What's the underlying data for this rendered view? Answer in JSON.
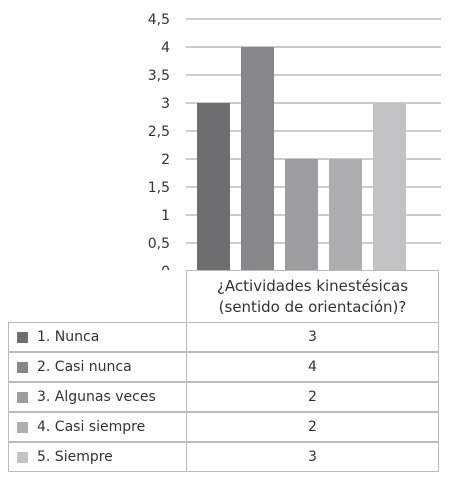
{
  "chart_data": {
    "type": "bar",
    "title": "",
    "xlabel": "",
    "ylabel": "",
    "categories": [
      "¿Actividades kinestésicas (sentido de orientación)?"
    ],
    "category_lines": [
      "¿Actividades kinestésicas",
      "(sentido de orientación)?"
    ],
    "ylim": [
      0,
      4.5
    ],
    "yticks": [
      "0",
      "0,5",
      "1",
      "1,5",
      "2",
      "2,5",
      "3",
      "3,5",
      "4",
      "4,5"
    ],
    "grid": true,
    "legend_placement": "bottom-table",
    "series": [
      {
        "name": "1. Nunca",
        "values": [
          3
        ],
        "value_label": "3",
        "color": "#6e6e70"
      },
      {
        "name": "2. Casi nunca",
        "values": [
          4
        ],
        "value_label": "4",
        "color": "#878789"
      },
      {
        "name": "3. Algunas veces",
        "values": [
          2
        ],
        "value_label": "2",
        "color": "#9d9d9f"
      },
      {
        "name": "4. Casi siempre",
        "values": [
          2
        ],
        "value_label": "2",
        "color": "#aeaeb0"
      },
      {
        "name": "5. Siempre",
        "values": [
          3
        ],
        "value_label": "3",
        "color": "#c3c3c5"
      }
    ]
  }
}
